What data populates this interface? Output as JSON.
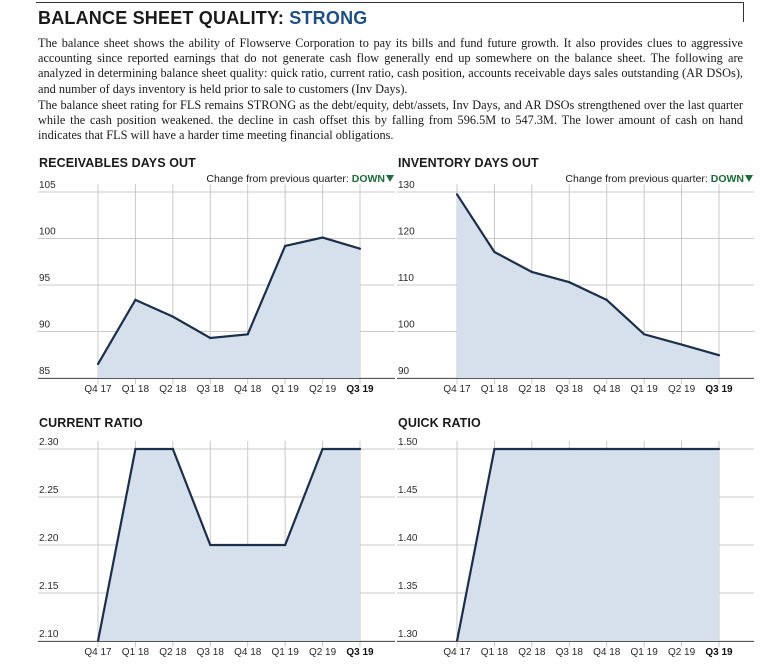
{
  "header": {
    "title_prefix": "BALANCE SHEET QUALITY:",
    "rating": "STRONG"
  },
  "paragraphs": [
    "The balance sheet shows the ability of Flowserve Corporation to pay its bills and fund future growth. It also provides clues to aggressive accounting since reported earnings that do not generate cash flow generally end up somewhere on the balance sheet. The following are analyzed in determining balance sheet quality: quick ratio, current ratio, cash position, accounts receivable days sales outstanding (AR DSOs), and number of days inventory is held prior to sale to customers (Inv Days).",
    "The balance sheet rating for FLS remains STRONG as the  debt/equity, debt/assets, Inv Days, and AR DSOs strengthened over the last quarter while the cash position weakened.  the decline in cash offset this by falling from 596.5M to 547.3M. The lower amount of cash on hand indicates that FLS will have a harder time meeting financial obligations."
  ],
  "colors": {
    "line": "#1c2f4a",
    "fill": "#d6e0ec",
    "grid": "#c9c9c9",
    "axis": "#555555",
    "accent": "#1d6b3a",
    "title": "#1f4f82"
  },
  "chart_data": [
    {
      "type": "area",
      "title": "RECEIVABLES DAYS OUT",
      "change_label": "Change from previous quarter:",
      "change_value": "DOWN",
      "categories": [
        "Q4 17",
        "Q1 18",
        "Q2 18",
        "Q3 18",
        "Q4 18",
        "Q1 19",
        "Q2 19",
        "Q3 19"
      ],
      "values": [
        86.5,
        93.4,
        91.6,
        89.3,
        89.7,
        99.2,
        100.1,
        98.9
      ],
      "ylim": [
        85,
        105
      ],
      "yticks": [
        "85",
        "90",
        "95",
        "100",
        "105"
      ],
      "grid": true
    },
    {
      "type": "area",
      "title": "INVENTORY DAYS OUT",
      "change_label": "Change from previous quarter:",
      "change_value": "DOWN",
      "categories": [
        "Q4 17",
        "Q1 18",
        "Q2 18",
        "Q3 18",
        "Q4 18",
        "Q1 19",
        "Q2 19",
        "Q3 19"
      ],
      "values": [
        129.5,
        117.1,
        112.8,
        110.6,
        106.8,
        99.4,
        97.2,
        94.9
      ],
      "ylim": [
        90,
        130
      ],
      "yticks": [
        "90",
        "100",
        "110",
        "120",
        "130"
      ],
      "grid": true
    },
    {
      "type": "area",
      "title": "CURRENT RATIO",
      "categories": [
        "Q4 17",
        "Q1 18",
        "Q2 18",
        "Q3 18",
        "Q4 18",
        "Q1 19",
        "Q2 19",
        "Q3 19"
      ],
      "values": [
        2.1,
        2.3,
        2.3,
        2.2,
        2.2,
        2.2,
        2.3,
        2.3
      ],
      "ylim": [
        2.1,
        2.3
      ],
      "yticks": [
        "2.10",
        "2.15",
        "2.20",
        "2.25",
        "2.30"
      ],
      "grid": true
    },
    {
      "type": "area",
      "title": "QUICK RATIO",
      "categories": [
        "Q4 17",
        "Q1 18",
        "Q2 18",
        "Q3 18",
        "Q4 18",
        "Q1 19",
        "Q2 19",
        "Q3 19"
      ],
      "values": [
        1.3,
        1.5,
        1.5,
        1.5,
        1.5,
        1.5,
        1.5,
        1.5
      ],
      "ylim": [
        1.3,
        1.5
      ],
      "yticks": [
        "1.30",
        "1.35",
        "1.40",
        "1.45",
        "1.50"
      ],
      "grid": true
    }
  ]
}
